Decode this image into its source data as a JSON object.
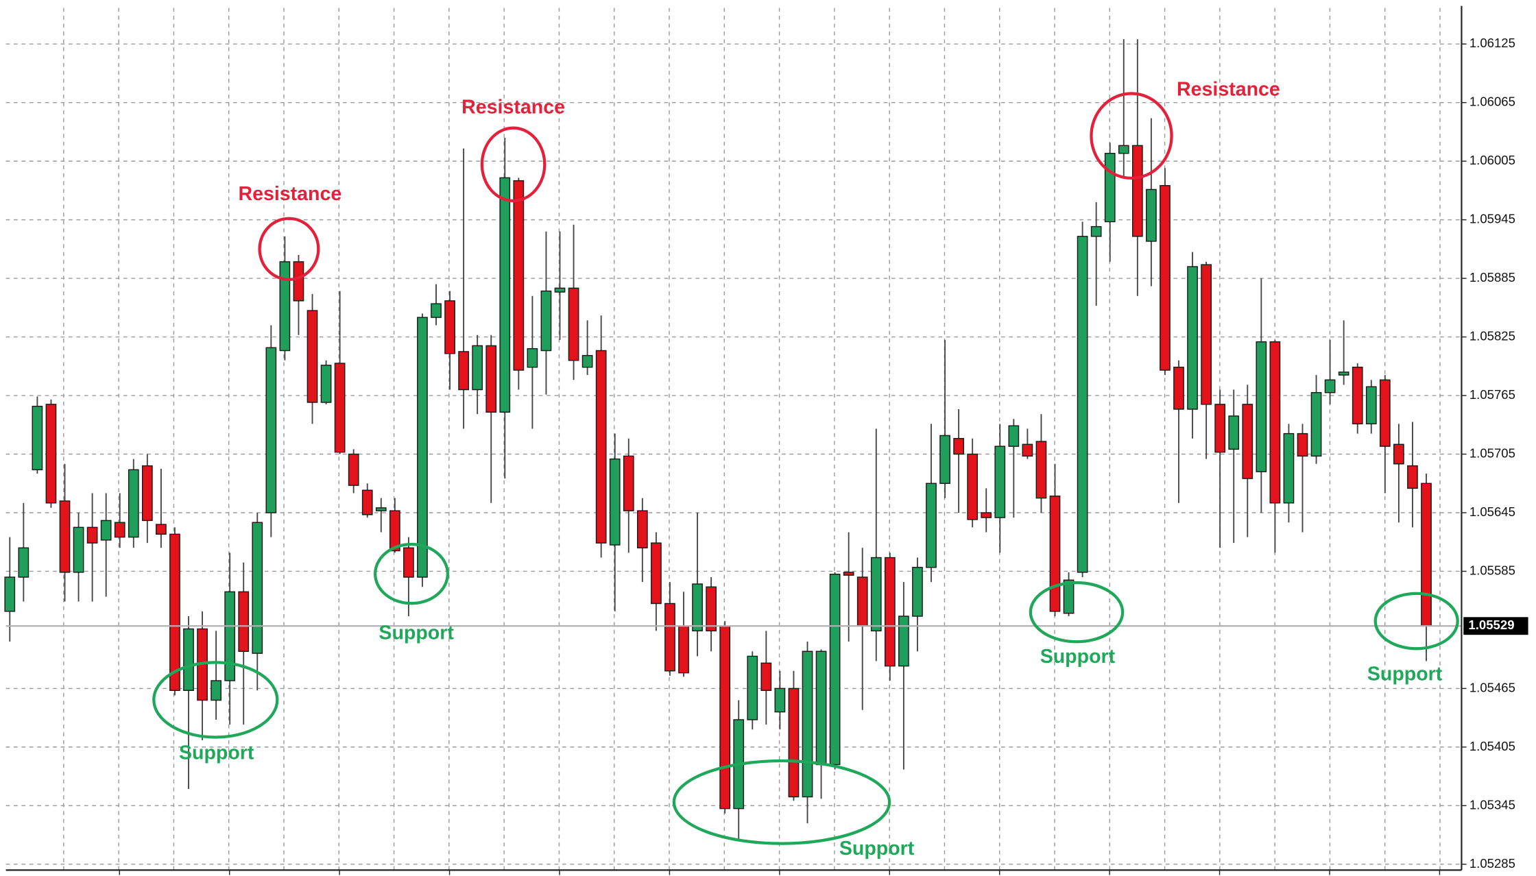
{
  "chart_data": {
    "type": "candlestick",
    "up_color": "#1f9e5c",
    "down_color": "#e3131c",
    "grid": true,
    "ylim": [
      1.05279,
      1.06162
    ],
    "yticks": [
      1.06125,
      1.06065,
      1.06005,
      1.05945,
      1.05885,
      1.05825,
      1.05765,
      1.05705,
      1.05645,
      1.05585,
      1.05465,
      1.05405,
      1.05345,
      1.05285
    ],
    "last_price": 1.05529,
    "open": [
      1.05544,
      1.05579,
      1.05689,
      1.05756,
      1.05657,
      1.05584,
      1.0563,
      1.05617,
      1.05635,
      1.0562,
      1.05693,
      1.05633,
      1.05623,
      1.05463,
      1.05526,
      1.05453,
      1.05473,
      1.05564,
      1.05501,
      1.05645,
      1.05811,
      1.05902,
      1.05852,
      1.05758,
      1.05798,
      1.05705,
      1.05668,
      1.05647,
      1.05647,
      1.05609,
      1.05579,
      1.05845,
      1.05862,
      1.0581,
      1.05771,
      1.05816,
      1.05748,
      1.05985,
      1.05794,
      1.05811,
      1.05871,
      1.05875,
      1.05794,
      1.05811,
      1.05612,
      1.05703,
      1.05647,
      1.05614,
      1.05552,
      1.05529,
      1.05524,
      1.05569,
      1.05529,
      1.05342,
      1.05433,
      1.05491,
      1.05441,
      1.05465,
      1.05354,
      1.05387,
      1.05387,
      1.05584,
      1.05579,
      1.05524,
      1.05599,
      1.05488,
      1.05539,
      1.05589,
      1.05675,
      1.05721,
      1.05705,
      1.05645,
      1.0564,
      1.05713,
      1.05715,
      1.05718,
      1.05662,
      1.05542,
      1.05584,
      1.05928,
      1.05943,
      1.06013,
      1.06021,
      1.05923,
      1.0598,
      1.05794,
      1.05751,
      1.05899,
      1.05756,
      1.0571,
      1.05756,
      1.05687,
      1.0582,
      1.05655,
      1.05726,
      1.05703,
      1.05768,
      1.05786,
      1.05794,
      1.05736,
      1.05781,
      1.05715,
      1.05693,
      1.05675
    ],
    "high": [
      1.0562,
      1.05655,
      1.05764,
      1.05761,
      1.05695,
      1.05645,
      1.05665,
      1.05665,
      1.05665,
      1.057,
      1.05705,
      1.0569,
      1.0563,
      1.05539,
      1.05544,
      1.05524,
      1.05604,
      1.05594,
      1.05645,
      1.05837,
      1.05928,
      1.05909,
      1.05869,
      1.05801,
      1.05872,
      1.0571,
      1.05675,
      1.0566,
      1.0566,
      1.0562,
      1.05849,
      1.05879,
      1.05872,
      1.06018,
      1.05827,
      1.05827,
      1.06029,
      1.05988,
      1.05867,
      1.05933,
      1.05933,
      1.0594,
      1.05842,
      1.05847,
      1.05726,
      1.05721,
      1.0566,
      1.05625,
      1.05574,
      1.05564,
      1.05645,
      1.05579,
      1.05534,
      1.05453,
      1.05503,
      1.05524,
      1.05483,
      1.05483,
      1.05513,
      1.05505,
      1.05584,
      1.05625,
      1.05609,
      1.05731,
      1.05604,
      1.05574,
      1.05599,
      1.05736,
      1.05822,
      1.05751,
      1.05721,
      1.0567,
      1.05736,
      1.05741,
      1.05731,
      1.05746,
      1.05695,
      1.05584,
      1.05943,
      1.05963,
      1.06024,
      1.0613,
      1.0613,
      1.06049,
      1.05998,
      1.05801,
      1.05912,
      1.05902,
      1.05771,
      1.05771,
      1.05776,
      1.05885,
      1.05822,
      1.05736,
      1.05736,
      1.05786,
      1.05822,
      1.05842,
      1.05798,
      1.05781,
      1.05786,
      1.05736,
      1.05738,
      1.05685
    ],
    "low": [
      1.05513,
      1.05554,
      1.05685,
      1.0565,
      1.05554,
      1.05554,
      1.05554,
      1.05559,
      1.05609,
      1.05609,
      1.05614,
      1.05609,
      1.05458,
      1.05362,
      1.05412,
      1.05433,
      1.05428,
      1.05428,
      1.05463,
      1.0562,
      1.05801,
      1.05827,
      1.05736,
      1.05756,
      1.05705,
      1.05665,
      1.0564,
      1.05625,
      1.05604,
      1.05539,
      1.05569,
      1.05837,
      1.05771,
      1.05731,
      1.05746,
      1.05655,
      1.0568,
      1.05771,
      1.05731,
      1.05766,
      1.05822,
      1.05781,
      1.05786,
      1.05599,
      1.05544,
      1.05604,
      1.05574,
      1.05524,
      1.05478,
      1.05477,
      1.05498,
      1.05503,
      1.05337,
      1.05311,
      1.05423,
      1.05428,
      1.05423,
      1.0535,
      1.05327,
      1.05352,
      1.05382,
      1.05513,
      1.05443,
      1.05493,
      1.05473,
      1.05382,
      1.05503,
      1.05574,
      1.0566,
      1.05645,
      1.0563,
      1.05625,
      1.05604,
      1.0564,
      1.057,
      1.05645,
      1.05539,
      1.05539,
      1.05579,
      1.05857,
      1.05902,
      1.05988,
      1.05867,
      1.05877,
      1.05786,
      1.05655,
      1.05721,
      1.057,
      1.05609,
      1.05614,
      1.0562,
      1.05645,
      1.05604,
      1.05635,
      1.05625,
      1.05695,
      1.05756,
      1.05776,
      1.05726,
      1.05726,
      1.05665,
      1.05635,
      1.0563,
      1.05493
    ],
    "close": [
      1.05579,
      1.05609,
      1.05754,
      1.05655,
      1.05584,
      1.0563,
      1.05614,
      1.05637,
      1.0562,
      1.05689,
      1.05637,
      1.05623,
      1.05463,
      1.05526,
      1.05453,
      1.05473,
      1.05564,
      1.05503,
      1.05635,
      1.05814,
      1.05902,
      1.05862,
      1.05758,
      1.05796,
      1.05707,
      1.05673,
      1.05643,
      1.0565,
      1.05606,
      1.05579,
      1.05845,
      1.05859,
      1.05808,
      1.05771,
      1.05816,
      1.05748,
      1.05988,
      1.05791,
      1.05813,
      1.05872,
      1.05875,
      1.05801,
      1.05806,
      1.05614,
      1.057,
      1.05647,
      1.05609,
      1.05552,
      1.05483,
      1.05481,
      1.05572,
      1.05524,
      1.05342,
      1.05433,
      1.05498,
      1.05463,
      1.05465,
      1.05354,
      1.05503,
      1.05503,
      1.05582,
      1.05581,
      1.05529,
      1.05599,
      1.05488,
      1.05539,
      1.05589,
      1.05675,
      1.05724,
      1.05705,
      1.05638,
      1.0564,
      1.05713,
      1.05734,
      1.05703,
      1.0566,
      1.05544,
      1.05576,
      1.05928,
      1.05938,
      1.06013,
      1.06021,
      1.05928,
      1.05976,
      1.05791,
      1.05751,
      1.05897,
      1.05756,
      1.05707,
      1.05744,
      1.0568,
      1.0582,
      1.05655,
      1.05726,
      1.05703,
      1.05768,
      1.05781,
      1.05789,
      1.05736,
      1.05774,
      1.05713,
      1.05695,
      1.0567,
      1.05529
    ],
    "annotations": [
      {
        "text": "Resistance",
        "color": "#e3213a"
      },
      {
        "text": "Resistance",
        "color": "#e3213a"
      },
      {
        "text": "Resistance",
        "color": "#e3213a"
      },
      {
        "text": "Support",
        "color": "#1fa85a"
      },
      {
        "text": "Support",
        "color": "#1fa85a"
      },
      {
        "text": "Support",
        "color": "#1fa85a"
      },
      {
        "text": "Support",
        "color": "#1fa85a"
      },
      {
        "text": "Support",
        "color": "#1fa85a"
      }
    ]
  }
}
